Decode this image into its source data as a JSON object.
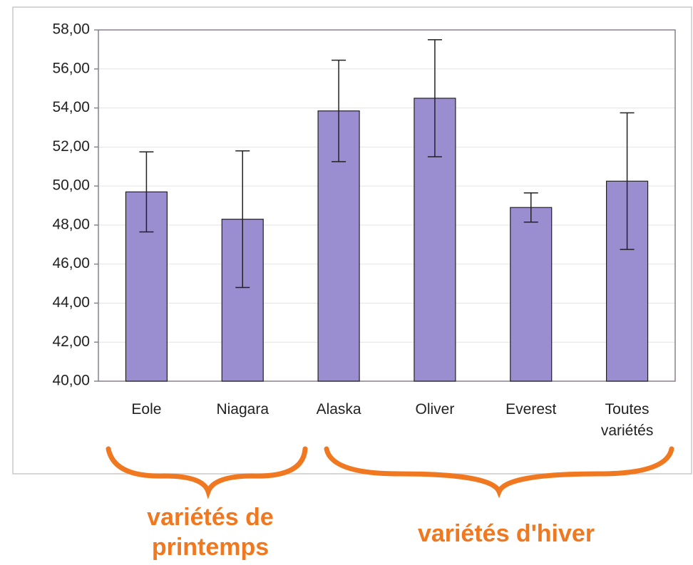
{
  "chart_data": {
    "type": "bar",
    "categories": [
      "Eole",
      "Niagara",
      "Alaska",
      "Oliver",
      "Everest",
      "Toutes variétés"
    ],
    "values": [
      49.7,
      48.3,
      53.85,
      54.5,
      48.9,
      50.25
    ],
    "errors": [
      2.05,
      3.5,
      2.6,
      3.0,
      0.75,
      3.5
    ],
    "color": "#9a8dd0",
    "ylim": [
      40,
      58
    ],
    "yticks": [
      {
        "value": 40,
        "label": "40,00"
      },
      {
        "value": 42,
        "label": "42,00"
      },
      {
        "value": 44,
        "label": "44,00"
      },
      {
        "value": 46,
        "label": "46,00"
      },
      {
        "value": 48,
        "label": "48,00"
      },
      {
        "value": 50,
        "label": "50,00"
      },
      {
        "value": 52,
        "label": "52,00"
      },
      {
        "value": 54,
        "label": "54,00"
      },
      {
        "value": 56,
        "label": "56,00"
      },
      {
        "value": 58,
        "label": "58,00"
      }
    ],
    "grid": true,
    "annotations": [
      "variétés de printemps",
      "variétés d'hiver"
    ]
  }
}
